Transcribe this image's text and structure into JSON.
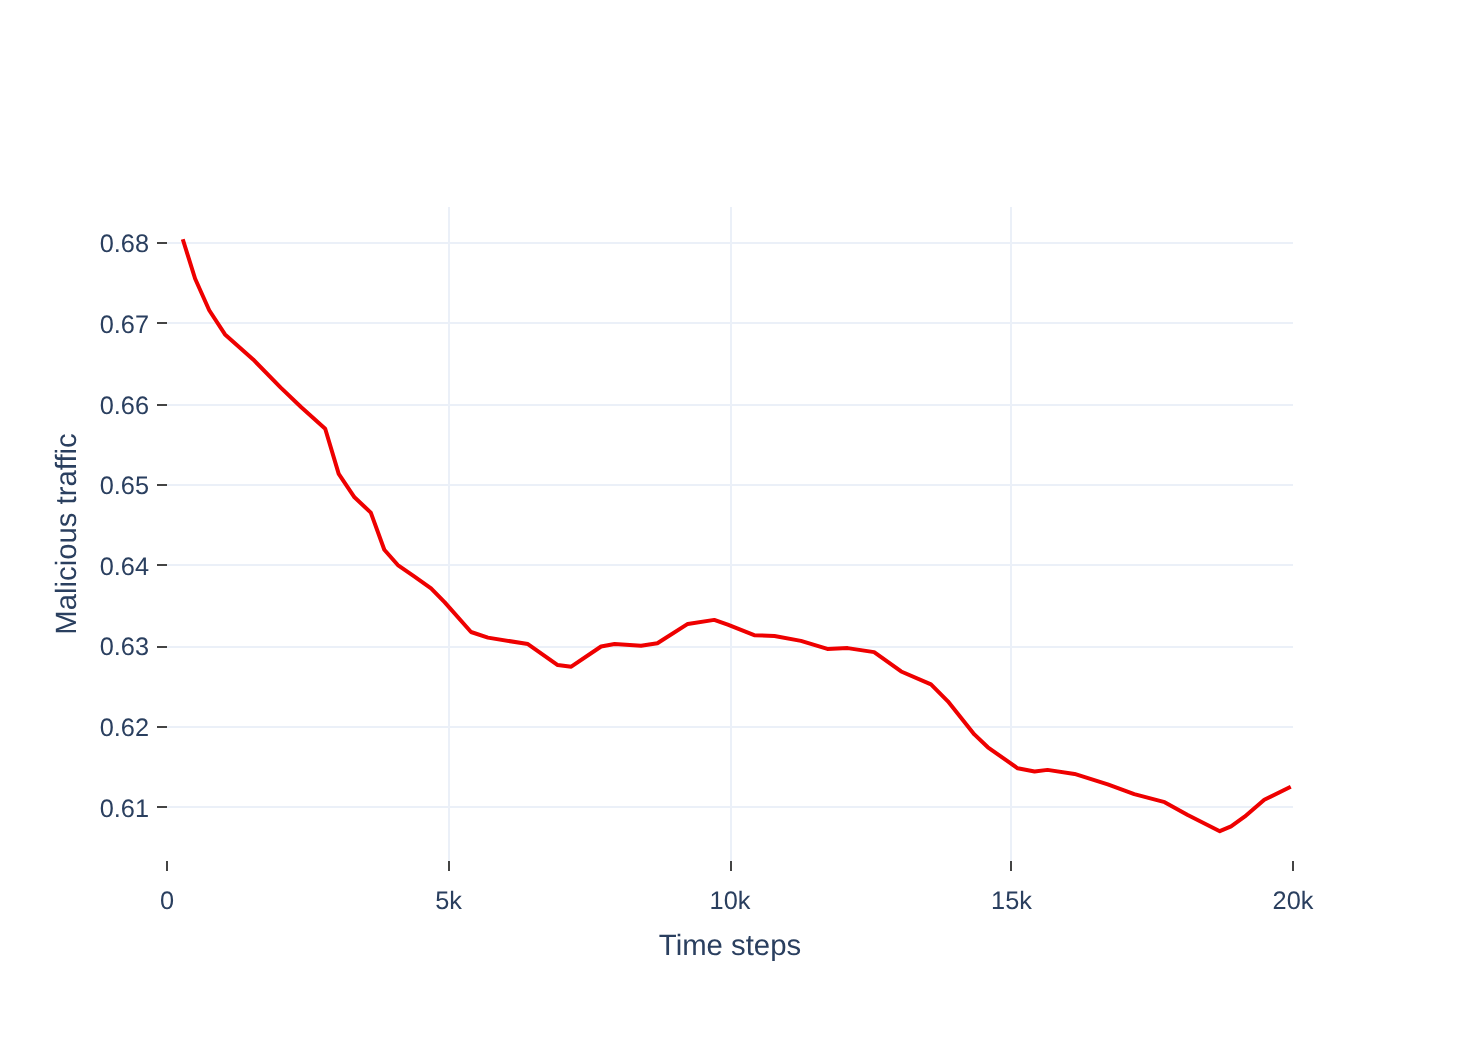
{
  "chart_data": {
    "type": "line",
    "xlabel": "Time steps",
    "ylabel": "Malicious traffic",
    "x": [
      280,
      500,
      750,
      1030,
      1530,
      2020,
      2380,
      2810,
      3050,
      3330,
      3620,
      3860,
      4100,
      4390,
      4690,
      4930,
      5400,
      5700,
      6410,
      6940,
      7180,
      7710,
      7950,
      8420,
      8710,
      9250,
      9720,
      9960,
      10430,
      10790,
      11260,
      11730,
      12090,
      12560,
      13040,
      13570,
      13870,
      14340,
      14580,
      15110,
      15410,
      15640,
      16120,
      16710,
      17180,
      17720,
      18130,
      18700,
      18900,
      19140,
      19490,
      19960
    ],
    "series": [
      {
        "color": "#ee0000",
        "values": [
          0.6805,
          0.6756,
          0.6717,
          0.6687,
          0.6656,
          0.6621,
          0.6597,
          0.657,
          0.6514,
          0.6485,
          0.6466,
          0.642,
          0.6401,
          0.6387,
          0.6372,
          0.6355,
          0.6318,
          0.6311,
          0.6303,
          0.6277,
          0.6275,
          0.63,
          0.6303,
          0.6301,
          0.6304,
          0.6328,
          0.6333,
          0.6327,
          0.6314,
          0.6313,
          0.6307,
          0.6297,
          0.6298,
          0.6293,
          0.6269,
          0.6253,
          0.6232,
          0.6191,
          0.6175,
          0.6149,
          0.6145,
          0.6147,
          0.6142,
          0.6129,
          0.6117,
          0.6107,
          0.6091,
          0.6071,
          0.6077,
          0.6089,
          0.611,
          0.6126
        ]
      }
    ],
    "xlim": [
      0,
      20000
    ],
    "xticks": [
      {
        "value": 0,
        "label": "0"
      },
      {
        "value": 5000,
        "label": "5k"
      },
      {
        "value": 10000,
        "label": "10k"
      },
      {
        "value": 15000,
        "label": "15k"
      },
      {
        "value": 20000,
        "label": "20k"
      }
    ],
    "ylim": [
      0.6034,
      0.6845
    ],
    "yticks": [
      0.61,
      0.62,
      0.63,
      0.64,
      0.65,
      0.66,
      0.67,
      0.68
    ],
    "grid": true,
    "line_style": "solid"
  }
}
